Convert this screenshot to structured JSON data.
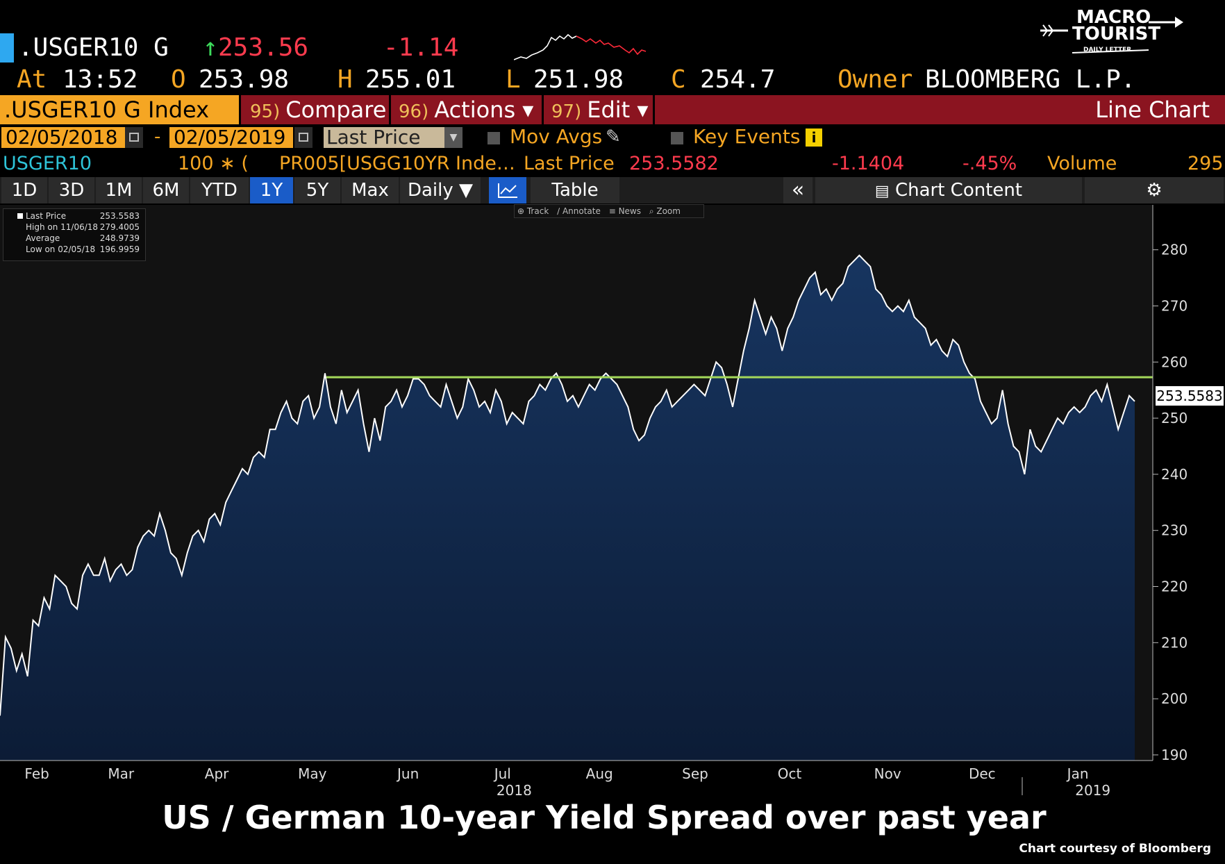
{
  "header": {
    "ticker": ".USGER10 G",
    "last_arrow": "↑",
    "last": "253.56",
    "change": "-1.14",
    "time_label": "At",
    "time": "13:52",
    "open_label": "O",
    "open": "253.98",
    "high_label": "H",
    "high": "255.01",
    "low_label": "L",
    "low": "251.98",
    "close_label": "C",
    "close": "254.7",
    "owner_label": "Owner",
    "owner": "BLOOMBERG L.P."
  },
  "logo": {
    "line1": "MACRO",
    "line2": "TOURIST",
    "line3": "DAILY LETTER"
  },
  "command_bar": {
    "security": ".USGER10 G Index",
    "compare_num": "95)",
    "compare": "Compare",
    "actions_num": "96)",
    "actions": "Actions ▾",
    "edit_num": "97)",
    "edit": "Edit ▾",
    "chart_type": "Line Chart"
  },
  "date_row": {
    "start": "02/05/2018",
    "dash": "-",
    "end": "02/05/2019",
    "field": "Last Price",
    "mov_avgs": "Mov Avgs",
    "key_events": "Key Events"
  },
  "info_row": {
    "name": "USGER10",
    "mult": "100 ∗ (",
    "formula": "PR005[USGG10YR Inde…",
    "last_label": "Last Price",
    "last": "253.5582",
    "chg": "-1.1404",
    "pct": "-.45%",
    "vol_label": "Volume",
    "vol": "295"
  },
  "tabs": [
    "1D",
    "3D",
    "1M",
    "6M",
    "YTD",
    "1Y",
    "5Y",
    "Max",
    "Daily ▼",
    "",
    "Table",
    "«",
    "Chart Content",
    "⚙"
  ],
  "active_tab": "1Y",
  "tools": [
    "⊕ Track",
    "∕ Annotate",
    "≡ News",
    "⌕ Zoom"
  ],
  "legend": {
    "rows": [
      {
        "label": "Last Price",
        "value": "253.5583"
      },
      {
        "label": "High on 11/06/18",
        "value": "279.4005"
      },
      {
        "label": "Average",
        "value": "248.9739"
      },
      {
        "label": "Low on 02/05/18",
        "value": "196.9959"
      }
    ]
  },
  "chart_data": {
    "type": "area",
    "title": "US / German 10-year Yield Spread over past year",
    "credit": "Chart courtesy of Bloomberg",
    "last_label": "253.5583",
    "xlabel": "",
    "ylabel": "",
    "ylim": [
      189,
      288
    ],
    "yticks": [
      190,
      200,
      210,
      220,
      230,
      240,
      250,
      260,
      270,
      280
    ],
    "x_ticks": [
      {
        "label": "Feb",
        "t": 0.032
      },
      {
        "label": "Mar",
        "t": 0.105
      },
      {
        "label": "Apr",
        "t": 0.188
      },
      {
        "label": "May",
        "t": 0.271
      },
      {
        "label": "Jun",
        "t": 0.354
      },
      {
        "label": "Jul",
        "t": 0.436
      },
      {
        "label": "Aug",
        "t": 0.52
      },
      {
        "label": "Sep",
        "t": 0.603
      },
      {
        "label": "Oct",
        "t": 0.685
      },
      {
        "label": "Nov",
        "t": 0.77
      },
      {
        "label": "Dec",
        "t": 0.852
      },
      {
        "label": "Jan",
        "t": 0.935
      }
    ],
    "year_labels": [
      {
        "label": "2018",
        "t": 0.446
      },
      {
        "label": "2019",
        "t": 0.948
      }
    ],
    "reference_line": 257.3,
    "series": [
      {
        "color": "#ffffff",
        "fill": "#13294a",
        "values": [
          197,
          211,
          209,
          205,
          208,
          204,
          214,
          213,
          218,
          216,
          222,
          221,
          220,
          217,
          216,
          222,
          224,
          222,
          222,
          225,
          221,
          223,
          224,
          222,
          223,
          227,
          229,
          230,
          229,
          233,
          230,
          226,
          225,
          222,
          226,
          229,
          230,
          228,
          232,
          233,
          231,
          235,
          237,
          239,
          241,
          240,
          243,
          244,
          243,
          248,
          248,
          251,
          253,
          250,
          249,
          253,
          254,
          250,
          252,
          258,
          252,
          249,
          255,
          251,
          253,
          255,
          249,
          244,
          250,
          246,
          252,
          253,
          255,
          252,
          254,
          257,
          257,
          256,
          254,
          253,
          252,
          256,
          253,
          250,
          252,
          257,
          255,
          252,
          253,
          251,
          255,
          253,
          249,
          251,
          250,
          249,
          253,
          254,
          256,
          255,
          257,
          258,
          256,
          253,
          254,
          252,
          254,
          256,
          255,
          257,
          258,
          257,
          256,
          254,
          252,
          248,
          246,
          247,
          250,
          252,
          253,
          255,
          252,
          253,
          254,
          255,
          256,
          255,
          254,
          257,
          260,
          259,
          256,
          252,
          257,
          262,
          266,
          271,
          268,
          265,
          268,
          266,
          262,
          266,
          268,
          271,
          273,
          275,
          276,
          272,
          273,
          271,
          273,
          274,
          277,
          278,
          279,
          278,
          277,
          273,
          272,
          270,
          269,
          270,
          269,
          271,
          268,
          267,
          266,
          263,
          264,
          262,
          261,
          264,
          263,
          260,
          258,
          257,
          253,
          251,
          249,
          250,
          255,
          249,
          245,
          244,
          240,
          248,
          245,
          244,
          246,
          248,
          250,
          249,
          251,
          252,
          251,
          252,
          254,
          255,
          253,
          256,
          252,
          248,
          251,
          254,
          253
        ]
      }
    ]
  }
}
